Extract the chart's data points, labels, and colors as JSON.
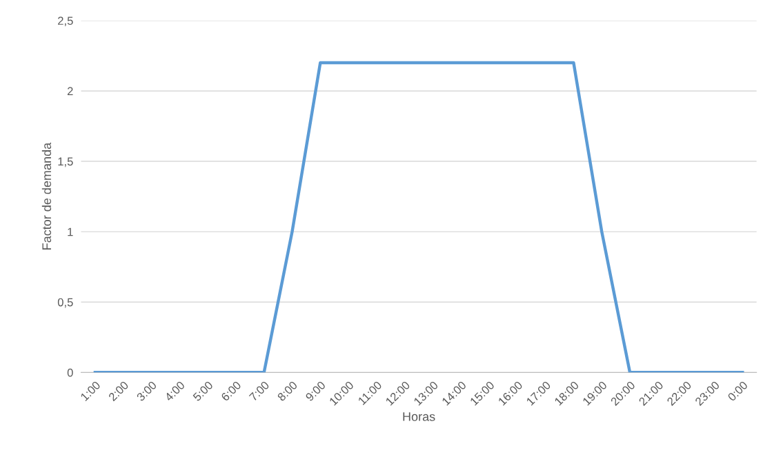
{
  "chart_data": {
    "type": "line",
    "xlabel": "Horas",
    "ylabel": "Factor de demanda",
    "categories": [
      "1:00",
      "2:00",
      "3:00",
      "4:00",
      "5:00",
      "6:00",
      "7:00",
      "8:00",
      "9:00",
      "10:00",
      "11:00",
      "12:00",
      "13:00",
      "14:00",
      "15:00",
      "16:00",
      "17:00",
      "18:00",
      "19:00",
      "20:00",
      "21:00",
      "22:00",
      "23:00",
      "0:00"
    ],
    "series": [
      {
        "color": "#5b9bd5",
        "values": [
          0,
          0,
          0,
          0,
          0,
          0,
          0,
          1,
          2.2,
          2.2,
          2.2,
          2.2,
          2.2,
          2.2,
          2.2,
          2.2,
          2.2,
          2.2,
          1,
          0,
          0,
          0,
          0,
          0
        ]
      }
    ],
    "ylim": [
      0,
      2.5
    ],
    "yticks": [
      0,
      {
        "value": 0.5,
        "label": "0,5"
      },
      1,
      {
        "value": 1.5,
        "label": "1,5"
      },
      2,
      {
        "value": 2.5,
        "label": "2,5"
      }
    ],
    "grid": "y",
    "legend": false,
    "marker": "none",
    "line_style": "solid"
  }
}
